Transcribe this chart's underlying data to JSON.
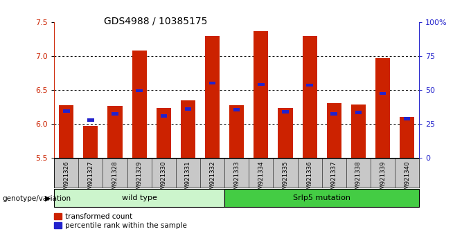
{
  "title": "GDS4988 / 10385175",
  "samples": [
    "GSM921326",
    "GSM921327",
    "GSM921328",
    "GSM921329",
    "GSM921330",
    "GSM921331",
    "GSM921332",
    "GSM921333",
    "GSM921334",
    "GSM921335",
    "GSM921336",
    "GSM921337",
    "GSM921338",
    "GSM921339",
    "GSM921340"
  ],
  "red_values": [
    6.28,
    5.97,
    6.27,
    7.08,
    6.24,
    6.35,
    7.3,
    6.28,
    7.37,
    6.24,
    7.29,
    6.31,
    6.29,
    6.97,
    6.1
  ],
  "blue_values": [
    6.19,
    6.06,
    6.15,
    6.49,
    6.12,
    6.22,
    6.6,
    6.21,
    6.58,
    6.18,
    6.57,
    6.15,
    6.17,
    6.45,
    6.08
  ],
  "ymin": 5.5,
  "ymax": 7.5,
  "yticks_red": [
    5.5,
    6.0,
    6.5,
    7.0,
    7.5
  ],
  "yticks_blue": [
    0,
    25,
    50,
    75,
    100
  ],
  "ytick_labels_blue": [
    "0",
    "25",
    "50",
    "75",
    "100%"
  ],
  "group1_label": "wild type",
  "group2_label": "Srlp5 mutation",
  "group1_count": 7,
  "legend_red": "transformed count",
  "legend_blue": "percentile rank within the sample",
  "bar_color": "#cc2200",
  "blue_color": "#2222cc",
  "tick_area_color": "#c8c8c8",
  "group1_bg": "#ccf5cc",
  "group2_bg": "#44cc44",
  "genotype_label": "genotype/variation",
  "title_fontsize": 10
}
